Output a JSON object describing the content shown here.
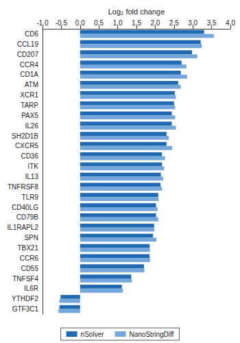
{
  "chart_data": {
    "type": "bar",
    "orientation": "horizontal",
    "xlabel": "Log₂ fold change",
    "categories": [
      "CD6",
      "CCL19",
      "CD207",
      "CCR4",
      "CD1A",
      "ATM",
      "XCR1",
      "TARP",
      "PAX5",
      "IL26",
      "SH2D1B",
      "CXCR5",
      "CD36",
      "ITK",
      "IL13",
      "TNFRSF8",
      "TLR9",
      "CD40LG",
      "CD79B",
      "IL1RAPL2",
      "SPN",
      "TBX21",
      "CCR6",
      "CD55",
      "TNFSF4",
      "IL6R",
      "YTHDF2",
      "GTF3C1"
    ],
    "series": [
      {
        "name": "nSolver",
        "color": "#1f6ab3",
        "values": [
          3.3,
          3.21,
          2.98,
          2.7,
          2.68,
          2.61,
          2.52,
          2.5,
          2.44,
          2.44,
          2.3,
          2.3,
          2.18,
          2.18,
          2.15,
          2.14,
          2.08,
          2.02,
          2.02,
          1.97,
          1.94,
          1.85,
          1.85,
          1.7,
          1.36,
          1.11,
          -0.52,
          -0.55
        ]
      },
      {
        "name": "NanoStringDiff",
        "color": "#74a7dc",
        "values": [
          3.56,
          3.24,
          3.12,
          2.83,
          2.85,
          2.68,
          2.55,
          2.53,
          2.53,
          2.55,
          2.36,
          2.45,
          2.26,
          2.24,
          2.21,
          2.18,
          2.09,
          2.06,
          2.08,
          1.98,
          2.03,
          1.86,
          1.86,
          1.71,
          1.38,
          1.14,
          -0.55,
          -0.58
        ]
      }
    ],
    "xlim": [
      -1,
      4
    ],
    "xticks": [
      {
        "value": -1,
        "label": "-1.0"
      },
      {
        "value": -0.5,
        "label": "-0.5"
      },
      {
        "value": 0,
        "label": "0.0"
      },
      {
        "value": 0.5,
        "label": "0.5"
      },
      {
        "value": 1,
        "label": "1.0"
      },
      {
        "value": 1.5,
        "label": "1.5"
      },
      {
        "value": 2,
        "label": "2.0"
      },
      {
        "value": 2.5,
        "label": "2.5"
      },
      {
        "value": 3,
        "label": "3.0"
      },
      {
        "value": 3.5,
        "label": "3.5"
      },
      {
        "value": 4,
        "label": "4.0"
      }
    ],
    "legend": "bottom",
    "grid": false
  }
}
